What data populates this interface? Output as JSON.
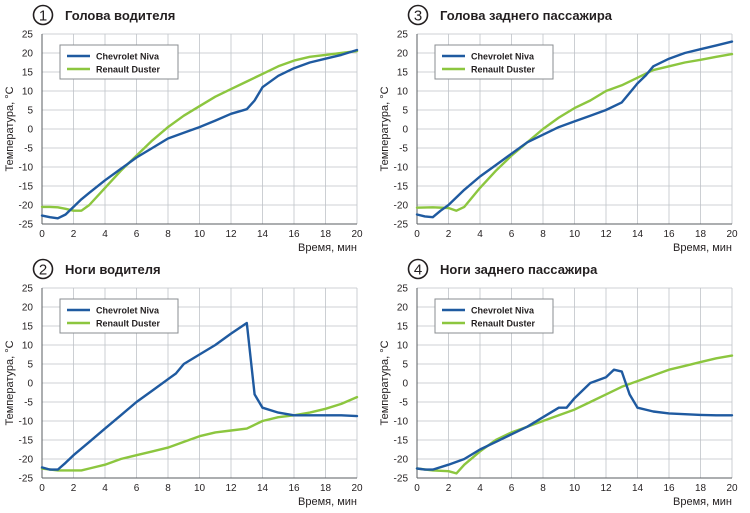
{
  "chart_data": [
    {
      "type": "line",
      "number": "1",
      "title": "Голова водителя",
      "xlabel": "Время, мин",
      "ylabel": "Температура, °C",
      "xlim": [
        0,
        20
      ],
      "ylim": [
        -25,
        25
      ],
      "xticks": [
        0,
        2,
        4,
        6,
        8,
        10,
        12,
        14,
        16,
        18,
        20
      ],
      "yticks": [
        25,
        20,
        15,
        10,
        5,
        0,
        -5,
        -10,
        -15,
        -20,
        -25
      ],
      "grid": true,
      "legend_position": "top-left",
      "series": [
        {
          "name": "Chevrolet Niva",
          "color": "#1f5aa0",
          "x": [
            0,
            0.5,
            1,
            1.5,
            2,
            2.5,
            3,
            4,
            5,
            6,
            7,
            8,
            9,
            10,
            11,
            12,
            13,
            13.5,
            14,
            15,
            16,
            17,
            18,
            19,
            20
          ],
          "y": [
            -22.8,
            -23.2,
            -23.5,
            -22.5,
            -20.5,
            -18.5,
            -16.8,
            -13.5,
            -10.5,
            -7.5,
            -5,
            -2.5,
            -1,
            0.5,
            2.2,
            4,
            5.2,
            7.5,
            11,
            14,
            16,
            17.5,
            18.5,
            19.5,
            20.8
          ]
        },
        {
          "name": "Renault Duster",
          "color": "#8cc63f",
          "x": [
            0,
            0.5,
            1,
            1.5,
            2,
            2.5,
            3,
            4,
            5,
            6,
            7,
            8,
            9,
            10,
            11,
            12,
            13,
            14,
            15,
            16,
            17,
            18,
            19,
            20
          ],
          "y": [
            -20.5,
            -20.5,
            -20.6,
            -21,
            -21.5,
            -21.5,
            -20,
            -15.5,
            -11,
            -7,
            -3,
            0.5,
            3.5,
            6,
            8.5,
            10.5,
            12.5,
            14.5,
            16.5,
            18,
            19,
            19.5,
            20,
            20.5
          ]
        }
      ]
    },
    {
      "type": "line",
      "number": "2",
      "title": "Ноги водителя",
      "xlabel": "Время, мин",
      "ylabel": "Температура, °C",
      "xlim": [
        0,
        20
      ],
      "ylim": [
        -25,
        25
      ],
      "xticks": [
        0,
        2,
        4,
        6,
        8,
        10,
        12,
        14,
        16,
        18,
        20
      ],
      "yticks": [
        25,
        20,
        15,
        10,
        5,
        0,
        -5,
        -10,
        -15,
        -20,
        -25
      ],
      "grid": true,
      "legend_position": "top-left",
      "series": [
        {
          "name": "Chevrolet Niva",
          "color": "#1f5aa0",
          "x": [
            0,
            0.5,
            1,
            1.5,
            2,
            3,
            4,
            5,
            6,
            7,
            8,
            8.5,
            9,
            10,
            11,
            12,
            13,
            13.5,
            14,
            15,
            16,
            17,
            18,
            19,
            20
          ],
          "y": [
            -22.2,
            -22.8,
            -22.8,
            -21,
            -19,
            -15.5,
            -12,
            -8.5,
            -5,
            -2,
            1,
            2.5,
            5,
            7.5,
            10,
            13,
            15.8,
            -3,
            -6.5,
            -7.8,
            -8.5,
            -8.5,
            -8.5,
            -8.5,
            -8.7
          ]
        },
        {
          "name": "Renault Duster",
          "color": "#8cc63f",
          "x": [
            0,
            1,
            2,
            2.5,
            3,
            4,
            5,
            6,
            7,
            8,
            9,
            10,
            11,
            12,
            13,
            13.5,
            14,
            15,
            16,
            17,
            18,
            19,
            20
          ],
          "y": [
            -22.5,
            -23,
            -23,
            -23,
            -22.5,
            -21.5,
            -20,
            -19,
            -18,
            -17,
            -15.5,
            -14,
            -13,
            -12.5,
            -12,
            -11,
            -10,
            -9,
            -8.5,
            -7.8,
            -6.8,
            -5.5,
            -3.7
          ]
        }
      ]
    },
    {
      "type": "line",
      "number": "3",
      "title": "Голова заднего пассажира",
      "xlabel": "Время, мин",
      "ylabel": "Температура, °C",
      "xlim": [
        0,
        20
      ],
      "ylim": [
        -25,
        25
      ],
      "xticks": [
        0,
        2,
        4,
        6,
        8,
        10,
        12,
        14,
        16,
        18,
        20
      ],
      "yticks": [
        25,
        20,
        15,
        10,
        5,
        0,
        -5,
        -10,
        -15,
        -20,
        -25
      ],
      "grid": true,
      "legend_position": "top-left",
      "series": [
        {
          "name": "Chevrolet Niva",
          "color": "#1f5aa0",
          "x": [
            0,
            0.5,
            1,
            1.5,
            2,
            3,
            4,
            5,
            6,
            7,
            8,
            9,
            10,
            11,
            12,
            13,
            14,
            14.5,
            15,
            16,
            17,
            18,
            19,
            20
          ],
          "y": [
            -22.5,
            -23,
            -23.2,
            -21.5,
            -20,
            -16,
            -12.5,
            -9.5,
            -6.5,
            -3.5,
            -1.5,
            0.5,
            2,
            3.5,
            5,
            7,
            12,
            14,
            16.5,
            18.5,
            20,
            21,
            22,
            23
          ]
        },
        {
          "name": "Renault Duster",
          "color": "#8cc63f",
          "x": [
            0,
            1,
            2,
            2.5,
            3,
            4,
            5,
            6,
            7,
            8,
            9,
            10,
            11,
            12,
            13,
            14,
            15,
            16,
            17,
            18,
            19,
            20
          ],
          "y": [
            -20.7,
            -20.6,
            -20.8,
            -21.5,
            -20.5,
            -15.5,
            -11,
            -7,
            -3.5,
            0,
            3,
            5.5,
            7.5,
            10,
            11.5,
            13.5,
            15.5,
            16.5,
            17.5,
            18.2,
            19,
            19.7
          ]
        }
      ]
    },
    {
      "type": "line",
      "number": "4",
      "title": "Ноги заднего пассажира",
      "xlabel": "Время, мин",
      "ylabel": "Температура, °C",
      "xlim": [
        0,
        20
      ],
      "ylim": [
        -25,
        25
      ],
      "xticks": [
        0,
        2,
        4,
        6,
        8,
        10,
        12,
        14,
        16,
        18,
        20
      ],
      "yticks": [
        25,
        20,
        15,
        10,
        5,
        0,
        -5,
        -10,
        -15,
        -20,
        -25
      ],
      "grid": true,
      "legend_position": "top-left",
      "series": [
        {
          "name": "Chevrolet Niva",
          "color": "#1f5aa0",
          "x": [
            0,
            0.5,
            1,
            2,
            3,
            4,
            5,
            6,
            7,
            8,
            9,
            9.5,
            10,
            11,
            12,
            12.5,
            13,
            13.5,
            14,
            15,
            16,
            17,
            18,
            19,
            20
          ],
          "y": [
            -22.5,
            -22.8,
            -22.8,
            -21.5,
            -20,
            -17.5,
            -15.5,
            -13.5,
            -11.5,
            -9,
            -6.5,
            -6.5,
            -4,
            0,
            1.5,
            3.5,
            3,
            -3,
            -6.5,
            -7.5,
            -8,
            -8.2,
            -8.4,
            -8.5,
            -8.5
          ]
        },
        {
          "name": "Renault Duster",
          "color": "#8cc63f",
          "x": [
            0,
            1,
            2,
            2.5,
            3,
            4,
            5,
            6,
            7,
            8,
            9,
            10,
            11,
            12,
            13,
            14,
            15,
            16,
            17,
            18,
            19,
            20
          ],
          "y": [
            -22.5,
            -23,
            -23.2,
            -23.8,
            -21.5,
            -18,
            -15,
            -13,
            -11.5,
            -10,
            -8.5,
            -7,
            -5,
            -3,
            -1,
            0.5,
            2,
            3.5,
            4.5,
            5.5,
            6.5,
            7.2
          ]
        }
      ]
    }
  ]
}
